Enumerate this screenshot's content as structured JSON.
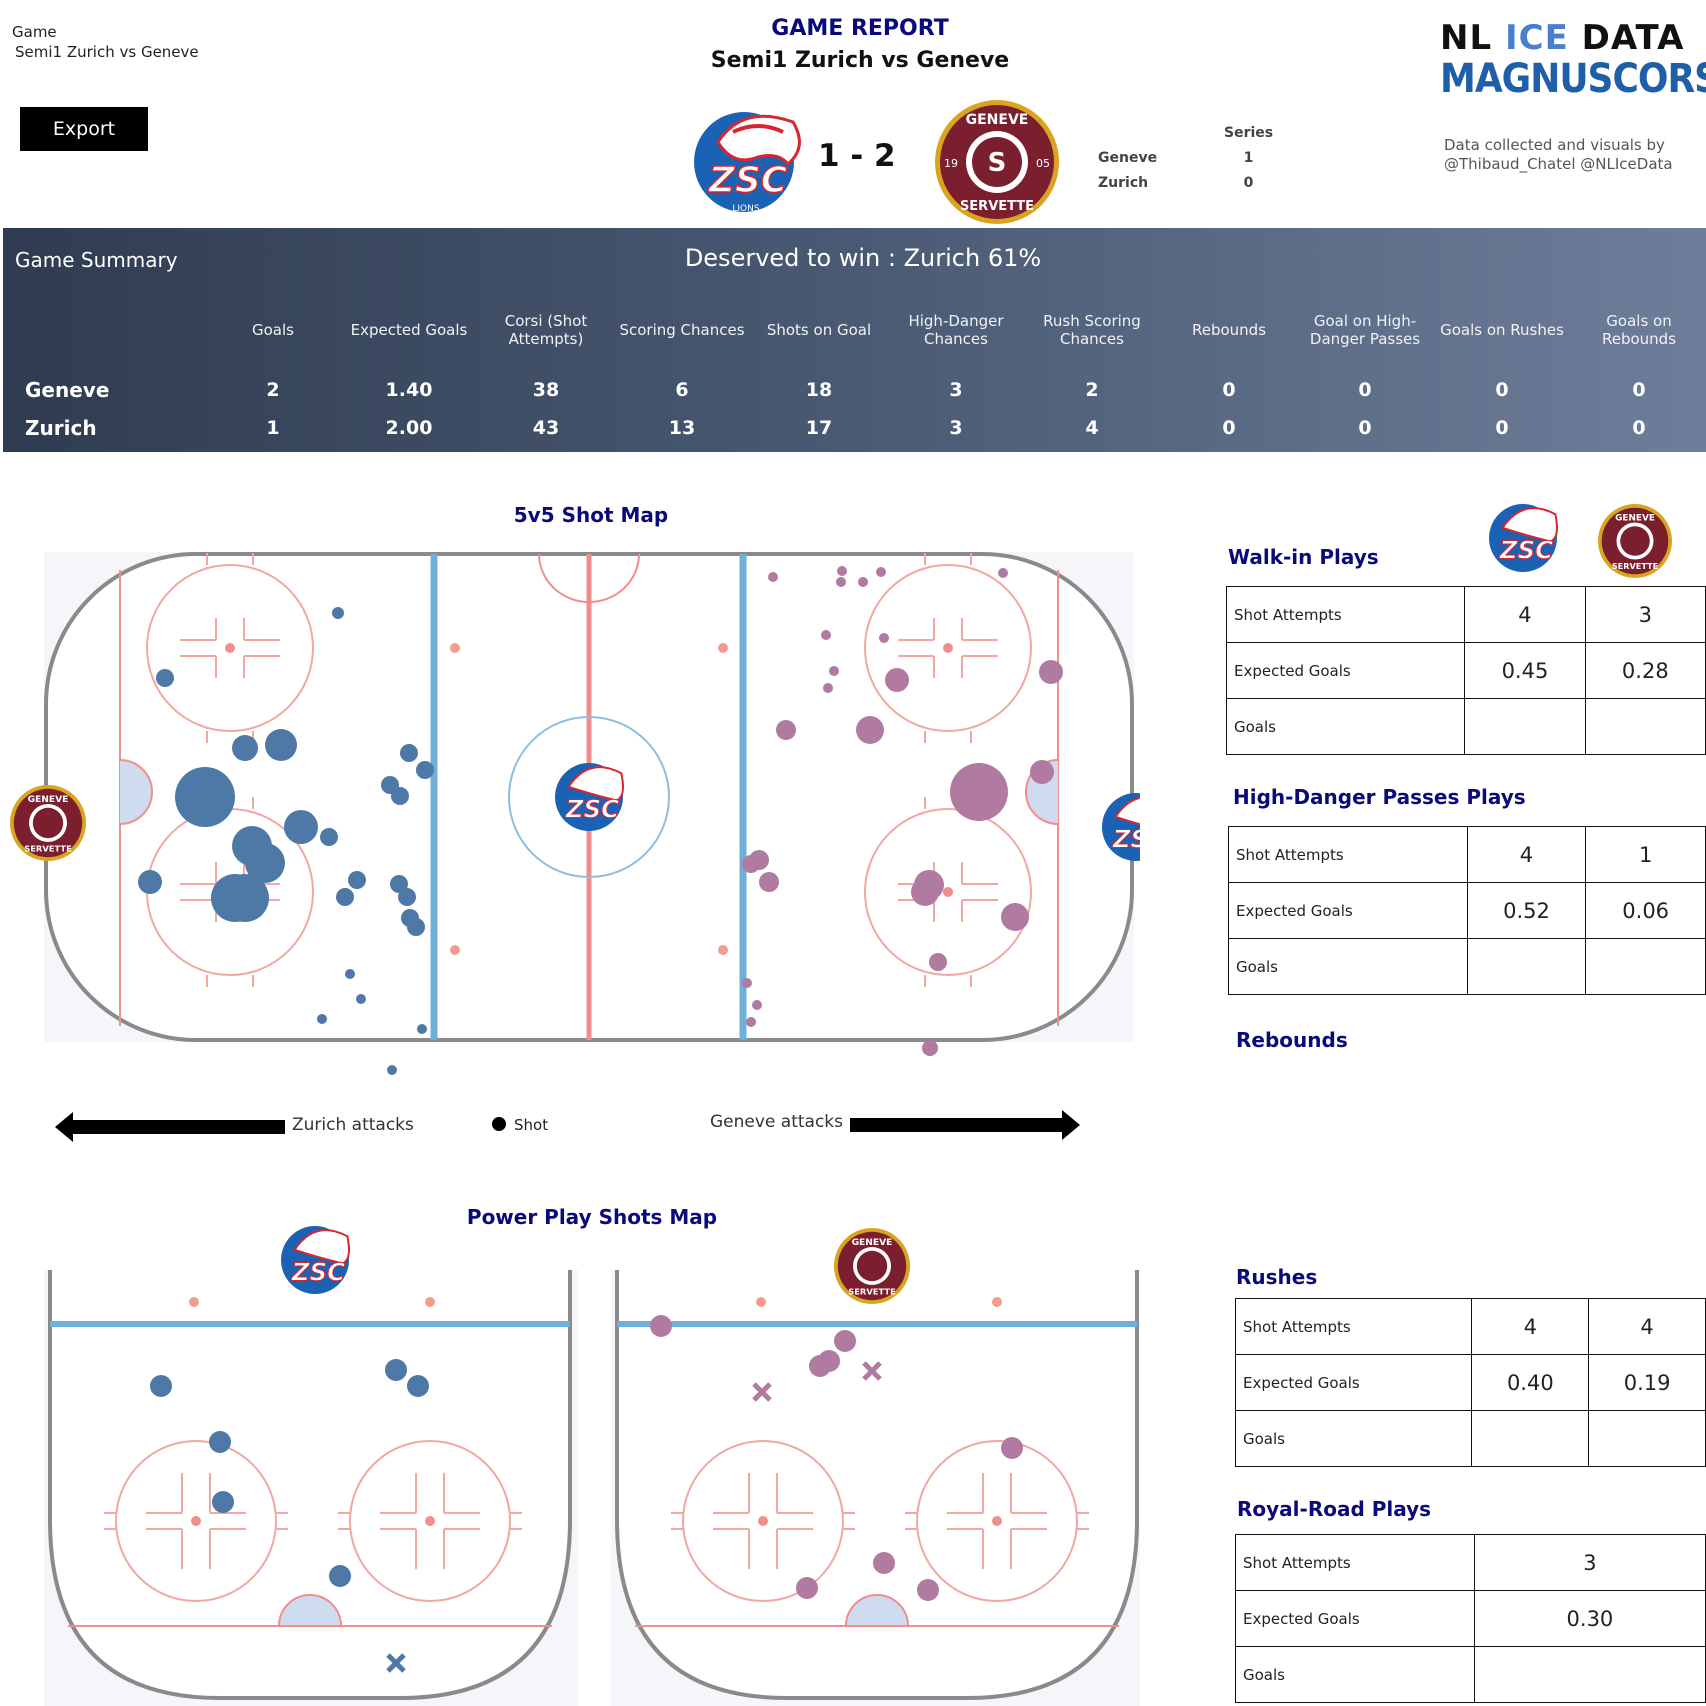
{
  "header": {
    "game_label": "Game",
    "game_value": "Semi1 Zurich vs Geneve",
    "export_label": "Export",
    "title": "GAME REPORT",
    "subtitle": "Semi1 Zurich vs Geneve",
    "score": "1 - 2",
    "series": {
      "title": "Series",
      "rows": [
        {
          "team": "Geneve",
          "wins": "1"
        },
        {
          "team": "Zurich",
          "wins": "0"
        }
      ]
    },
    "brand_line1_a": "NL ",
    "brand_line1_b": "ICE",
    "brand_line1_c": " DATA",
    "brand_line2": "MAGNUSCORSI",
    "credit_line1": "Data collected and visuals by",
    "credit_line2": "@Thibaud_Chatel @NLIceData"
  },
  "logos": {
    "zsc_text": "ZSC",
    "zsc_sub": "LIONS",
    "gs_top": "GENEVE",
    "gs_bottom": "SERVETTE",
    "gs_left": "19",
    "gs_right": "05"
  },
  "colors": {
    "zurich": "#4e79a7",
    "geneve": "#b07aa1",
    "navy": "#0a0a7a",
    "geneve_brand": "#7b1f2e",
    "gold": "#d9a521",
    "zsc_blue": "#1b62b4",
    "zsc_red": "#d9262e"
  },
  "summary": {
    "title": "Game Summary",
    "deserved_prefix": "Deserved to win : ",
    "deserved_value": "Zurich 61%",
    "columns": [
      "Goals",
      "Expected Goals",
      "Corsi (Shot Attempts)",
      "Scoring Chances",
      "Shots on Goal",
      "High-Danger Chances",
      "Rush Scoring Chances",
      "Rebounds",
      "Goal on High-Danger Passes",
      "Goals on Rushes",
      "Goals on Rebounds"
    ],
    "rows": [
      {
        "team": "Geneve",
        "values": [
          "2",
          "1.40",
          "38",
          "6",
          "18",
          "3",
          "2",
          "0",
          "0",
          "0",
          "0"
        ]
      },
      {
        "team": "Zurich",
        "values": [
          "1",
          "2.00",
          "43",
          "13",
          "17",
          "3",
          "4",
          "0",
          "0",
          "0",
          "0"
        ]
      }
    ]
  },
  "shotmap": {
    "title": "5v5 Shot Map",
    "zurich_attacks": "Zurich attacks",
    "geneve_attacks": "Geneve attacks",
    "legend_shot": "Shot"
  },
  "powerplay": {
    "title": "Power Play Shots Map"
  },
  "tables": [
    {
      "title": "Walk-in Plays",
      "rows": [
        {
          "label": "Shot Attempts",
          "zurich": "4",
          "geneve": "3"
        },
        {
          "label": "Expected Goals",
          "zurich": "0.45",
          "geneve": "0.28"
        },
        {
          "label": "Goals",
          "zurich": "",
          "geneve": ""
        }
      ]
    },
    {
      "title": "High-Danger Passes Plays",
      "rows": [
        {
          "label": "Shot Attempts",
          "zurich": "4",
          "geneve": "1"
        },
        {
          "label": "Expected Goals",
          "zurich": "0.52",
          "geneve": "0.06"
        },
        {
          "label": "Goals",
          "zurich": "",
          "geneve": ""
        }
      ]
    },
    {
      "title": "Rebounds",
      "rows": []
    },
    {
      "title": "Rushes",
      "rows": [
        {
          "label": "Shot Attempts",
          "zurich": "4",
          "geneve": "4"
        },
        {
          "label": "Expected Goals",
          "zurich": "0.40",
          "geneve": "0.19"
        },
        {
          "label": "Goals",
          "zurich": "",
          "geneve": ""
        }
      ]
    },
    {
      "title": "Royal-Road Plays",
      "rows": [
        {
          "label": "Shot Attempts",
          "value": "3"
        },
        {
          "label": "Expected Goals",
          "value": "0.30"
        },
        {
          "label": "Goals",
          "value": ""
        }
      ]
    }
  ]
}
